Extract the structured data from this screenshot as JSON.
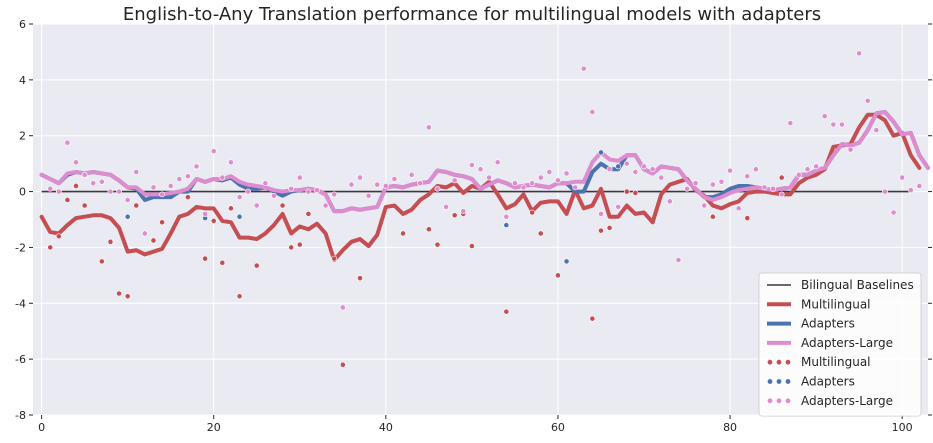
{
  "chart_data": {
    "type": "line",
    "title": "English-to-Any Translation performance for multilingual models with adapters",
    "xlim": [
      -1,
      103
    ],
    "ylim": [
      -8,
      6
    ],
    "x_ticks": [
      0,
      20,
      40,
      60,
      80,
      100
    ],
    "y_ticks": [
      -8,
      -6,
      -4,
      -2,
      0,
      2,
      4,
      6
    ],
    "grid": true,
    "legend_position": "lower-right",
    "colors": {
      "background": "#eaeaf2",
      "grid": "#ffffff",
      "baseline": "#3a3a3a",
      "multilingual": "#c44e52",
      "adapters": "#4c72b0",
      "adapters_large": "#dd8cce"
    },
    "legend": [
      "Bilingual Baselines",
      "Multilingual",
      "Adapters",
      "Adapters-Large",
      "Multilingual",
      "Adapters",
      "Adapters-Large"
    ],
    "baseline": {
      "name": "Bilingual Baselines",
      "x": [
        0,
        101
      ],
      "y": [
        0,
        0
      ]
    },
    "series": [
      {
        "name": "Multilingual",
        "kind": "line",
        "color": "#c44e52",
        "values": [
          -0.9,
          -1.45,
          -1.5,
          -1.2,
          -0.95,
          -0.9,
          -0.85,
          -0.85,
          -0.95,
          -1.3,
          -2.15,
          -2.1,
          -2.25,
          -2.15,
          -2.05,
          -1.5,
          -0.9,
          -0.8,
          -0.55,
          -0.6,
          -0.6,
          -1.05,
          -1.1,
          -1.65,
          -1.65,
          -1.7,
          -1.5,
          -1.2,
          -0.8,
          -1.5,
          -1.25,
          -1.35,
          -1.15,
          -1.5,
          -2.45,
          -2.1,
          -1.8,
          -1.7,
          -1.95,
          -1.55,
          -0.55,
          -0.5,
          -0.8,
          -0.65,
          -0.3,
          -0.1,
          0.2,
          0.15,
          0.3,
          -0.05,
          0.2,
          0.1,
          0.35,
          -0.1,
          -0.6,
          -0.45,
          -0.1,
          -0.7,
          -0.4,
          -0.35,
          -0.35,
          -0.8,
          0.05,
          -0.6,
          -0.5,
          0.1,
          -0.9,
          -0.9,
          -0.5,
          -0.8,
          -0.75,
          -1.1,
          -0.1,
          0.25,
          0.35,
          0.45,
          0.05,
          -0.15,
          -0.5,
          -0.6,
          -0.45,
          -0.35,
          -0.05,
          0.0,
          0.0,
          -0.05,
          -0.1,
          -0.1,
          0.3,
          0.5,
          0.6,
          0.8,
          1.6,
          1.65,
          1.7,
          2.3,
          2.75,
          2.75,
          2.55,
          2.0,
          2.1,
          1.3,
          0.85
        ]
      },
      {
        "name": "Adapters",
        "kind": "line",
        "color": "#4c72b0",
        "values": [
          0.6,
          0.45,
          0.3,
          0.6,
          0.7,
          0.65,
          0.7,
          0.65,
          0.6,
          0.4,
          0.15,
          0.1,
          -0.3,
          -0.2,
          -0.2,
          -0.2,
          0.0,
          0.0,
          0.45,
          0.35,
          0.45,
          0.4,
          0.5,
          0.25,
          0.1,
          0.1,
          0.15,
          0.0,
          -0.15,
          0.0,
          0.05,
          0.1,
          0.05,
          -0.1,
          -0.7,
          -0.7,
          -0.6,
          -0.65,
          -0.6,
          -0.55,
          0.15,
          0.2,
          0.15,
          0.25,
          0.3,
          0.35,
          0.75,
          0.7,
          0.6,
          0.55,
          0.45,
          0.1,
          0.25,
          0.4,
          0.3,
          0.15,
          0.2,
          0.25,
          0.2,
          0.15,
          0.3,
          0.3,
          0.0,
          0.0,
          0.7,
          1.0,
          0.8,
          0.8,
          1.3,
          1.3,
          0.8,
          0.65,
          0.9,
          0.85,
          0.8,
          0.4,
          0.1,
          -0.2,
          -0.2,
          -0.1,
          0.1,
          0.2,
          0.2,
          0.15,
          0.1,
          0.05,
          0.1,
          0.15,
          0.6,
          0.6,
          0.75,
          0.85,
          1.3,
          1.7,
          1.65,
          1.75,
          2.2,
          2.8,
          2.85,
          2.5,
          2.05,
          2.1,
          1.3,
          0.85
        ]
      },
      {
        "name": "Adapters-Large",
        "kind": "line",
        "color": "#dd8cce",
        "values": [
          0.6,
          0.45,
          0.3,
          0.65,
          0.7,
          0.65,
          0.7,
          0.65,
          0.6,
          0.4,
          0.15,
          0.15,
          -0.1,
          -0.1,
          -0.1,
          -0.05,
          0.0,
          0.1,
          0.45,
          0.35,
          0.45,
          0.45,
          0.55,
          0.35,
          0.25,
          0.2,
          0.15,
          0.05,
          0.0,
          0.05,
          0.05,
          0.1,
          0.05,
          -0.1,
          -0.7,
          -0.7,
          -0.6,
          -0.65,
          -0.6,
          -0.55,
          0.15,
          0.2,
          0.15,
          0.25,
          0.3,
          0.35,
          0.75,
          0.7,
          0.6,
          0.55,
          0.45,
          0.1,
          0.25,
          0.4,
          0.3,
          0.15,
          0.2,
          0.25,
          0.2,
          0.15,
          0.3,
          0.3,
          0.35,
          0.35,
          1.05,
          1.4,
          1.15,
          1.1,
          1.3,
          1.3,
          0.8,
          0.65,
          0.9,
          0.85,
          0.8,
          0.4,
          0.1,
          -0.2,
          -0.3,
          -0.2,
          -0.05,
          0.05,
          0.1,
          0.15,
          0.1,
          0.05,
          0.1,
          0.15,
          0.6,
          0.6,
          0.75,
          0.85,
          1.3,
          1.7,
          1.65,
          1.75,
          2.2,
          2.8,
          2.85,
          2.5,
          2.05,
          2.1,
          1.3,
          0.85
        ]
      },
      {
        "name": "Multilingual",
        "kind": "scatter",
        "color": "#c44e52",
        "points": [
          [
            1,
            -2.0
          ],
          [
            2,
            -1.6
          ],
          [
            3,
            -0.3
          ],
          [
            4,
            0.2
          ],
          [
            5,
            -0.5
          ],
          [
            7,
            -2.5
          ],
          [
            8,
            -1.8
          ],
          [
            9,
            -3.65
          ],
          [
            10,
            -3.75
          ],
          [
            11,
            -0.5
          ],
          [
            13,
            -1.75
          ],
          [
            14,
            -1.1
          ],
          [
            17,
            -0.2
          ],
          [
            19,
            -2.4
          ],
          [
            20,
            -1.05
          ],
          [
            21,
            -2.55
          ],
          [
            22,
            -0.6
          ],
          [
            23,
            -3.75
          ],
          [
            25,
            -2.65
          ],
          [
            28,
            -0.5
          ],
          [
            29,
            -2.0
          ],
          [
            30,
            -1.9
          ],
          [
            31,
            -0.8
          ],
          [
            34,
            -2.4
          ],
          [
            35,
            -6.2
          ],
          [
            37,
            -3.1
          ],
          [
            42,
            -1.5
          ],
          [
            45,
            -1.35
          ],
          [
            46,
            -1.9
          ],
          [
            48,
            -0.85
          ],
          [
            49,
            -0.8
          ],
          [
            50,
            -1.95
          ],
          [
            54,
            -4.3
          ],
          [
            57,
            -0.75
          ],
          [
            58,
            -1.5
          ],
          [
            60,
            -3.0
          ],
          [
            61,
            -2.5
          ],
          [
            64,
            -4.55
          ],
          [
            65,
            -1.4
          ],
          [
            66,
            -1.3
          ],
          [
            68,
            0.0
          ],
          [
            69,
            -0.05
          ],
          [
            78,
            -0.9
          ],
          [
            82,
            -0.95
          ],
          [
            86,
            0.5
          ]
        ]
      },
      {
        "name": "Adapters",
        "kind": "scatter",
        "color": "#4c72b0",
        "points": [
          [
            10,
            -0.9
          ],
          [
            19,
            -0.95
          ],
          [
            23,
            -0.9
          ],
          [
            54,
            -1.2
          ],
          [
            61,
            -2.5
          ],
          [
            65,
            1.4
          ],
          [
            67,
            0.9
          ]
        ]
      },
      {
        "name": "Adapters-Large",
        "kind": "scatter",
        "color": "#dd8cce",
        "points": [
          [
            1,
            0.1
          ],
          [
            2,
            0.0
          ],
          [
            3,
            1.75
          ],
          [
            4,
            1.05
          ],
          [
            5,
            0.6
          ],
          [
            6,
            0.3
          ],
          [
            7,
            0.35
          ],
          [
            8,
            0.0
          ],
          [
            9,
            0.0
          ],
          [
            10,
            -0.3
          ],
          [
            11,
            0.7
          ],
          [
            12,
            -1.5
          ],
          [
            13,
            0.15
          ],
          [
            14,
            -0.1
          ],
          [
            15,
            0.2
          ],
          [
            16,
            0.45
          ],
          [
            17,
            0.55
          ],
          [
            18,
            0.9
          ],
          [
            19,
            -0.8
          ],
          [
            20,
            1.45
          ],
          [
            21,
            0.5
          ],
          [
            22,
            1.05
          ],
          [
            23,
            -0.2
          ],
          [
            24,
            0.0
          ],
          [
            25,
            -0.5
          ],
          [
            26,
            0.3
          ],
          [
            27,
            -0.15
          ],
          [
            29,
            0.1
          ],
          [
            30,
            0.5
          ],
          [
            31,
            0.0
          ],
          [
            32,
            0.05
          ],
          [
            33,
            -0.5
          ],
          [
            34,
            -0.1
          ],
          [
            35,
            -4.15
          ],
          [
            36,
            0.25
          ],
          [
            37,
            0.5
          ],
          [
            38,
            -0.15
          ],
          [
            39,
            0.25
          ],
          [
            40,
            0.2
          ],
          [
            41,
            0.45
          ],
          [
            43,
            0.6
          ],
          [
            44,
            0.3
          ],
          [
            45,
            2.3
          ],
          [
            46,
            0.1
          ],
          [
            47,
            -0.55
          ],
          [
            48,
            0.4
          ],
          [
            49,
            -0.7
          ],
          [
            50,
            0.95
          ],
          [
            51,
            0.8
          ],
          [
            52,
            0.5
          ],
          [
            53,
            1.05
          ],
          [
            54,
            -0.9
          ],
          [
            55,
            0.3
          ],
          [
            56,
            0.15
          ],
          [
            57,
            0.3
          ],
          [
            58,
            0.5
          ],
          [
            59,
            0.7
          ],
          [
            60,
            0.4
          ],
          [
            61,
            0.65
          ],
          [
            62,
            0.15
          ],
          [
            63,
            4.4
          ],
          [
            64,
            2.85
          ],
          [
            65,
            -0.8
          ],
          [
            66,
            0.8
          ],
          [
            67,
            -0.55
          ],
          [
            68,
            1.0
          ],
          [
            69,
            0.7
          ],
          [
            70,
            0.9
          ],
          [
            71,
            0.8
          ],
          [
            72,
            0.5
          ],
          [
            73,
            -0.35
          ],
          [
            74,
            -2.45
          ],
          [
            75,
            0.1
          ],
          [
            76,
            0.3
          ],
          [
            77,
            -0.5
          ],
          [
            78,
            0.25
          ],
          [
            79,
            0.35
          ],
          [
            80,
            0.75
          ],
          [
            81,
            -0.6
          ],
          [
            82,
            0.55
          ],
          [
            83,
            0.8
          ],
          [
            84,
            0.15
          ],
          [
            85,
            0.1
          ],
          [
            86,
            -0.1
          ],
          [
            87,
            2.45
          ],
          [
            88,
            0.6
          ],
          [
            89,
            0.8
          ],
          [
            90,
            0.9
          ],
          [
            91,
            2.7
          ],
          [
            92,
            2.4
          ],
          [
            93,
            2.4
          ],
          [
            94,
            1.5
          ],
          [
            95,
            4.95
          ],
          [
            96,
            3.25
          ],
          [
            97,
            2.2
          ],
          [
            98,
            0.0
          ],
          [
            99,
            -0.75
          ],
          [
            100,
            0.5
          ],
          [
            101,
            0.05
          ],
          [
            102,
            0.2
          ]
        ]
      }
    ]
  }
}
